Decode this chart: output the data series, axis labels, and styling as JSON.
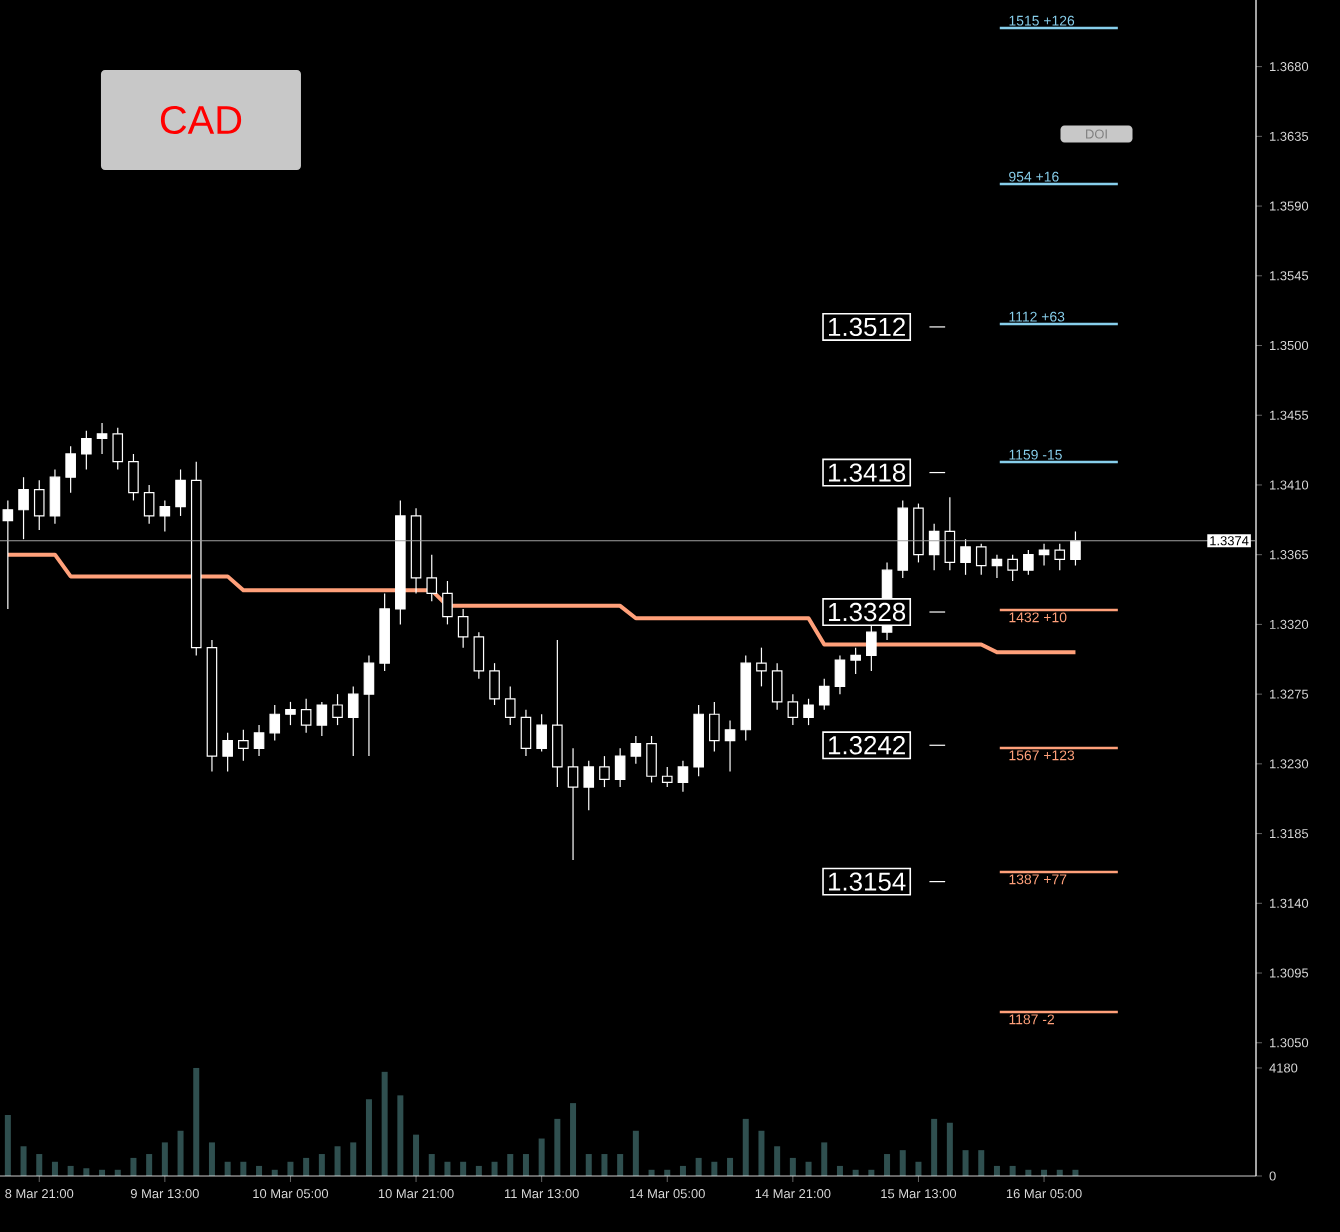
{
  "chart_data": {
    "type": "candlestick",
    "categories": [
      null,
      null,
      "8 Mar 21:00",
      null,
      null,
      null,
      null,
      null,
      null,
      null,
      "9 Mar 13:00",
      null,
      null,
      null,
      null,
      null,
      null,
      null,
      "10 Mar 05:00",
      null,
      null,
      null,
      null,
      null,
      null,
      null,
      "10 Mar 21:00",
      null,
      null,
      null,
      null,
      null,
      null,
      null,
      "11 Mar 13:00",
      null,
      null,
      null,
      null,
      null,
      null,
      null,
      "14 Mar 05:00",
      null,
      null,
      null,
      null,
      null,
      null,
      null,
      "14 Mar 21:00",
      null,
      null,
      null,
      null,
      null,
      null,
      null,
      "15 Mar 13:00",
      null,
      null,
      null,
      null,
      null,
      null,
      null,
      "16 Mar 05:00",
      null,
      null,
      null,
      null,
      null,
      null,
      null,
      null,
      null,
      null,
      null,
      null,
      null
    ],
    "ohlc": [
      [
        1.3387,
        1.34,
        1.333,
        1.3394
      ],
      [
        1.3394,
        1.3415,
        1.3375,
        1.3407
      ],
      [
        1.3407,
        1.3413,
        1.3381,
        1.339
      ],
      [
        1.339,
        1.342,
        1.3385,
        1.3415
      ],
      [
        1.3415,
        1.3435,
        1.3405,
        1.343
      ],
      [
        1.343,
        1.3445,
        1.342,
        1.344
      ],
      [
        1.344,
        1.345,
        1.343,
        1.3443
      ],
      [
        1.3443,
        1.3447,
        1.342,
        1.3425
      ],
      [
        1.3425,
        1.343,
        1.34,
        1.3405
      ],
      [
        1.3405,
        1.341,
        1.3385,
        1.339
      ],
      [
        1.339,
        1.34,
        1.338,
        1.3396
      ],
      [
        1.3396,
        1.342,
        1.339,
        1.3413
      ],
      [
        1.3413,
        1.3425,
        1.33,
        1.3305
      ],
      [
        1.3305,
        1.331,
        1.3225,
        1.3235
      ],
      [
        1.3235,
        1.325,
        1.3225,
        1.3245
      ],
      [
        1.3245,
        1.3252,
        1.3232,
        1.324
      ],
      [
        1.324,
        1.3255,
        1.3235,
        1.325
      ],
      [
        1.325,
        1.3268,
        1.3245,
        1.3262
      ],
      [
        1.3262,
        1.327,
        1.3255,
        1.3265
      ],
      [
        1.3265,
        1.3272,
        1.325,
        1.3255
      ],
      [
        1.3255,
        1.327,
        1.3248,
        1.3268
      ],
      [
        1.3268,
        1.3275,
        1.3255,
        1.326
      ],
      [
        1.326,
        1.328,
        1.3235,
        1.3275
      ],
      [
        1.3275,
        1.33,
        1.3235,
        1.3295
      ],
      [
        1.3295,
        1.334,
        1.329,
        1.333
      ],
      [
        1.333,
        1.34,
        1.332,
        1.339
      ],
      [
        1.339,
        1.3395,
        1.334,
        1.335
      ],
      [
        1.335,
        1.3365,
        1.3335,
        1.334
      ],
      [
        1.334,
        1.3348,
        1.332,
        1.3325
      ],
      [
        1.3325,
        1.333,
        1.3305,
        1.3312
      ],
      [
        1.3312,
        1.3315,
        1.3285,
        1.329
      ],
      [
        1.329,
        1.3295,
        1.3268,
        1.3272
      ],
      [
        1.3272,
        1.328,
        1.3255,
        1.326
      ],
      [
        1.326,
        1.3265,
        1.3235,
        1.324
      ],
      [
        1.324,
        1.3262,
        1.3238,
        1.3255
      ],
      [
        1.3255,
        1.331,
        1.3215,
        1.3228
      ],
      [
        1.3228,
        1.324,
        1.3168,
        1.3215
      ],
      [
        1.3215,
        1.3232,
        1.32,
        1.3228
      ],
      [
        1.3228,
        1.3235,
        1.3215,
        1.322
      ],
      [
        1.322,
        1.324,
        1.3215,
        1.3235
      ],
      [
        1.3235,
        1.3248,
        1.323,
        1.3243
      ],
      [
        1.3243,
        1.3248,
        1.3218,
        1.3222
      ],
      [
        1.3222,
        1.3228,
        1.3215,
        1.3218
      ],
      [
        1.3218,
        1.3232,
        1.3212,
        1.3228
      ],
      [
        1.3228,
        1.3268,
        1.3222,
        1.3262
      ],
      [
        1.3262,
        1.327,
        1.3238,
        1.3245
      ],
      [
        1.3245,
        1.3258,
        1.3225,
        1.3252
      ],
      [
        1.3252,
        1.33,
        1.3245,
        1.3295
      ],
      [
        1.3295,
        1.3305,
        1.328,
        1.329
      ],
      [
        1.329,
        1.3295,
        1.3265,
        1.327
      ],
      [
        1.327,
        1.3275,
        1.3255,
        1.326
      ],
      [
        1.326,
        1.3272,
        1.3255,
        1.3268
      ],
      [
        1.3268,
        1.3285,
        1.3265,
        1.328
      ],
      [
        1.328,
        1.33,
        1.3275,
        1.3297
      ],
      [
        1.3297,
        1.3305,
        1.3288,
        1.33
      ],
      [
        1.33,
        1.332,
        1.329,
        1.3315
      ],
      [
        1.3315,
        1.336,
        1.331,
        1.3355
      ],
      [
        1.3355,
        1.34,
        1.335,
        1.3395
      ],
      [
        1.3395,
        1.3398,
        1.336,
        1.3365
      ],
      [
        1.3365,
        1.3385,
        1.3355,
        1.338
      ],
      [
        1.338,
        1.3402,
        1.3355,
        1.336
      ],
      [
        1.336,
        1.3375,
        1.3352,
        1.337
      ],
      [
        1.337,
        1.3372,
        1.3352,
        1.3358
      ],
      [
        1.3358,
        1.3365,
        1.335,
        1.3362
      ],
      [
        1.3362,
        1.3365,
        1.3348,
        1.3355
      ],
      [
        1.3355,
        1.3368,
        1.3352,
        1.3365
      ],
      [
        1.3365,
        1.3372,
        1.3358,
        1.3368
      ],
      [
        1.3368,
        1.3372,
        1.3355,
        1.3362
      ],
      [
        1.3362,
        1.338,
        1.3358,
        1.3374
      ],
      null,
      null,
      null,
      null,
      null,
      null,
      null,
      null,
      null,
      null,
      null
    ],
    "color": "#ffffff",
    "series": [
      {
        "type": "line",
        "color": "#ffa07a",
        "values": [
          1.3365,
          1.3365,
          1.3365,
          1.3365,
          1.3351,
          1.3351,
          1.3351,
          1.3351,
          1.3351,
          1.3351,
          1.3351,
          1.3351,
          1.3351,
          1.3351,
          1.3351,
          1.3342,
          1.3342,
          1.3342,
          1.3342,
          1.3342,
          1.3342,
          1.3342,
          1.3342,
          1.3342,
          1.3342,
          1.3342,
          1.3342,
          1.3342,
          1.3332,
          1.3332,
          1.3332,
          1.3332,
          1.3332,
          1.3332,
          1.3332,
          1.3332,
          1.3332,
          1.3332,
          1.3332,
          1.3332,
          1.3324,
          1.3324,
          1.3324,
          1.3324,
          1.3324,
          1.3324,
          1.3324,
          1.3324,
          1.3324,
          1.3324,
          1.3324,
          1.3324,
          1.3307,
          1.3307,
          1.3307,
          1.3307,
          1.3307,
          1.3307,
          1.3307,
          1.3307,
          1.3307,
          1.3307,
          1.3307,
          1.3302,
          1.3302,
          1.3302,
          1.3302,
          1.3302,
          1.3302,
          null,
          null,
          null,
          null,
          null,
          null,
          null,
          null,
          null,
          null,
          null
        ]
      },
      {
        "type": "bar",
        "axis": "y2",
        "color": "#2f4f4f",
        "values": [
          2360,
          1150,
          850,
          550,
          390,
          300,
          240,
          240,
          700,
          850,
          1300,
          1750,
          4180,
          1300,
          550,
          550,
          390,
          240,
          550,
          700,
          850,
          1150,
          1300,
          2970,
          4030,
          3120,
          1600,
          850,
          550,
          550,
          390,
          550,
          850,
          850,
          1450,
          2210,
          2820,
          850,
          850,
          850,
          1750,
          240,
          240,
          390,
          700,
          550,
          700,
          2210,
          1750,
          1150,
          700,
          550,
          1300,
          390,
          240,
          240,
          850,
          1000,
          550,
          2210,
          2060,
          1000,
          1000,
          390,
          390,
          240,
          240,
          240,
          240,
          null,
          null,
          null,
          null,
          null,
          null,
          null,
          null,
          null,
          null,
          null
        ]
      }
    ],
    "ref_lines": [
      {
        "axis": "y",
        "value": 1.3374,
        "label": "1.3374",
        "color": "#a0a0a0"
      }
    ],
    "annotations": [
      "CAD",
      "DOI",
      "1515 +126",
      "954 +16",
      "1112 +63",
      "1159 -15",
      "1432 +10",
      "1567 +123",
      "1387 +77",
      "1187 -2",
      {
        "text": "1.3512",
        "y": 1.3512
      },
      {
        "text": "1.3418",
        "y": 1.3418
      },
      {
        "text": "1.3328",
        "y": 1.3328
      },
      {
        "text": "1.3242",
        "y": 1.3242
      },
      {
        "text": "1.3154",
        "y": 1.3154
      }
    ],
    "ylim": [
      1.2964,
      1.3723
    ],
    "yticks": [
      {
        "value": 1.305,
        "label": "1.3050"
      },
      {
        "value": 1.3095,
        "label": "1.3095"
      },
      {
        "value": 1.314,
        "label": "1.3140"
      },
      {
        "value": 1.3185,
        "label": "1.3185"
      },
      {
        "value": 1.323,
        "label": "1.3230"
      },
      {
        "value": 1.3275,
        "label": "1.3275"
      },
      {
        "value": 1.332,
        "label": "1.3320"
      },
      {
        "value": 1.3365,
        "label": "1.3365"
      },
      {
        "value": 1.341,
        "label": "1.3410"
      },
      {
        "value": 1.3455,
        "label": "1.3455"
      },
      {
        "value": 1.35,
        "label": "1.3500"
      },
      {
        "value": 1.3545,
        "label": "1.3545"
      },
      {
        "value": 1.359,
        "label": "1.3590"
      },
      {
        "value": 1.3635,
        "label": "1.3635"
      },
      {
        "value": 1.368,
        "label": "1.3680"
      }
    ],
    "y2lim": [
      0,
      45500
    ],
    "y2ticks": [
      0,
      4180
    ]
  }
}
